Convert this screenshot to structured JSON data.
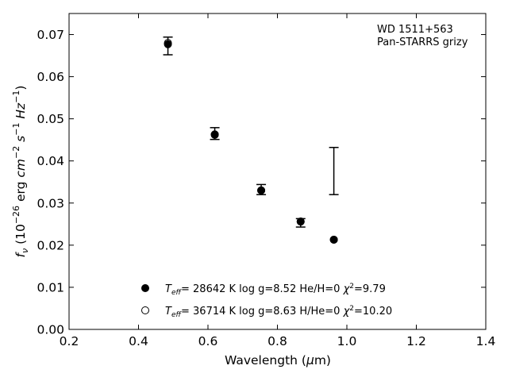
{
  "chart_data": {
    "type": "scatter",
    "title": "",
    "xlabel": "Wavelength (μm)",
    "ylabel": "f_ν (10^-26 erg cm^-2 s^-1 Hz^-1)",
    "xlim": [
      0.2,
      1.4
    ],
    "ylim": [
      0.0,
      0.075
    ],
    "x_ticks": [
      "0.2",
      "0.4",
      "0.6",
      "0.8",
      "1.0",
      "1.2",
      "1.4"
    ],
    "y_ticks": [
      "0.00",
      "0.01",
      "0.02",
      "0.03",
      "0.04",
      "0.05",
      "0.06",
      "0.07"
    ],
    "annotation": [
      "WD 1511+563",
      "Pan-STARRS grizy"
    ],
    "observed": {
      "x": [
        0.4847,
        0.6196,
        0.7533,
        0.8669,
        0.9625
      ],
      "y": [
        0.0673,
        0.0465,
        0.0332,
        0.0253,
        0.0376
      ],
      "err": [
        0.0021,
        0.0014,
        0.0012,
        0.001,
        0.0056
      ]
    },
    "series": [
      {
        "name": "T_eff= 28642 K  log g=8.52  He/H=0  χ²=9.79",
        "marker": "filled",
        "x": [
          0.4847,
          0.6196,
          0.7533,
          0.8669,
          0.9625
        ],
        "y": [
          0.0677,
          0.0462,
          0.033,
          0.0256,
          0.0213
        ]
      },
      {
        "name": "T_eff= 36714 K  log g=8.63  H/He=0  χ²=10.20",
        "marker": "open",
        "x": [
          0.4847,
          0.6196,
          0.7533,
          0.8669,
          0.9625
        ],
        "y": [
          0.068,
          0.0463,
          0.033,
          0.0256,
          0.0213
        ]
      }
    ],
    "legend": {
      "placement": "lower-center",
      "entries": [
        {
          "prefix": "T",
          "sub": "eff",
          "mid": "= 28642 K  log g=8.52  He/H=0  ",
          "chi": "χ",
          "sup": "2",
          "tail": "=9.79"
        },
        {
          "prefix": "T",
          "sub": "eff",
          "mid": "= 36714 K  log g=8.63  H/He=0  ",
          "chi": "χ",
          "sup": "2",
          "tail": "=10.20"
        }
      ]
    },
    "grid": false
  }
}
